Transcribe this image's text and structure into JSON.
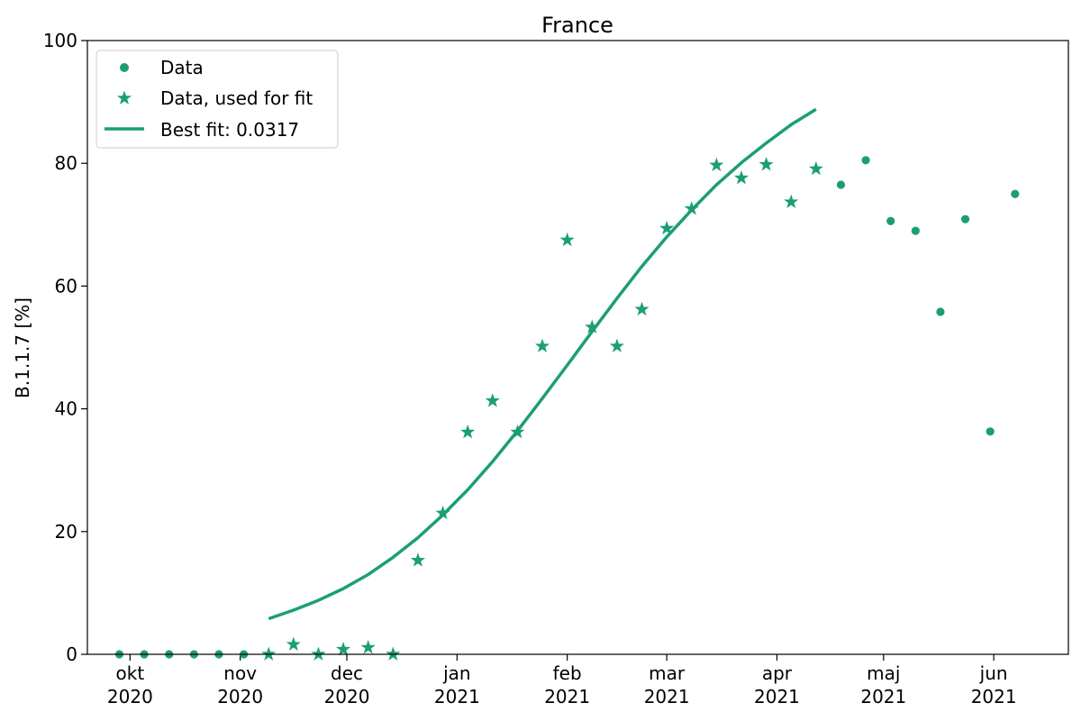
{
  "chart_data": {
    "type": "scatter",
    "title": "France",
    "xlabel": "",
    "ylabel": "B.1.1.7 [%]",
    "ylim": [
      0,
      100
    ],
    "xlim": [
      "2020-09-19",
      "2021-06-22"
    ],
    "yticks": [
      0,
      20,
      40,
      60,
      80,
      100
    ],
    "xticks": [
      {
        "date": "2020-10-01",
        "label1": "okt",
        "label2": "2020"
      },
      {
        "date": "2020-11-01",
        "label1": "nov",
        "label2": "2020"
      },
      {
        "date": "2020-12-01",
        "label1": "dec",
        "label2": "2020"
      },
      {
        "date": "2021-01-01",
        "label1": "jan",
        "label2": "2021"
      },
      {
        "date": "2021-02-01",
        "label1": "feb",
        "label2": "2021"
      },
      {
        "date": "2021-03-01",
        "label1": "mar",
        "label2": "2021"
      },
      {
        "date": "2021-04-01",
        "label1": "apr",
        "label2": "2021"
      },
      {
        "date": "2021-05-01",
        "label1": "maj",
        "label2": "2021"
      },
      {
        "date": "2021-06-01",
        "label1": "jun",
        "label2": "2021"
      }
    ],
    "color": "#1b9e77",
    "grid": false,
    "legend_position": "top-left",
    "legend": [
      {
        "label": "Data",
        "marker": "circle"
      },
      {
        "label": "Data, used for fit",
        "marker": "star"
      },
      {
        "label": "Best fit: 0.0317",
        "marker": "line"
      }
    ],
    "series": [
      {
        "name": "Data",
        "marker": "circle",
        "points": [
          {
            "x": "2020-09-28",
            "y": 0
          },
          {
            "x": "2020-10-05",
            "y": 0
          },
          {
            "x": "2020-10-12",
            "y": 0
          },
          {
            "x": "2020-10-19",
            "y": 0
          },
          {
            "x": "2020-10-26",
            "y": 0
          },
          {
            "x": "2020-11-02",
            "y": 0
          },
          {
            "x": "2021-04-19",
            "y": 76.5
          },
          {
            "x": "2021-04-26",
            "y": 80.5
          },
          {
            "x": "2021-05-03",
            "y": 70.6
          },
          {
            "x": "2021-05-10",
            "y": 69
          },
          {
            "x": "2021-05-17",
            "y": 55.8
          },
          {
            "x": "2021-05-24",
            "y": 70.9
          },
          {
            "x": "2021-05-31",
            "y": 36.3
          },
          {
            "x": "2021-06-07",
            "y": 75
          }
        ]
      },
      {
        "name": "Data, used for fit",
        "marker": "star",
        "points": [
          {
            "x": "2020-11-09",
            "y": 0
          },
          {
            "x": "2020-11-16",
            "y": 1.6
          },
          {
            "x": "2020-11-23",
            "y": 0
          },
          {
            "x": "2020-11-30",
            "y": 0.8
          },
          {
            "x": "2020-12-07",
            "y": 1.1
          },
          {
            "x": "2020-12-14",
            "y": 0
          },
          {
            "x": "2020-12-21",
            "y": 15.3
          },
          {
            "x": "2020-12-28",
            "y": 23
          },
          {
            "x": "2021-01-04",
            "y": 36.2
          },
          {
            "x": "2021-01-11",
            "y": 41.3
          },
          {
            "x": "2021-01-18",
            "y": 36.2
          },
          {
            "x": "2021-01-25",
            "y": 50.2
          },
          {
            "x": "2021-02-01",
            "y": 67.5
          },
          {
            "x": "2021-02-08",
            "y": 53.3
          },
          {
            "x": "2021-02-15",
            "y": 50.2
          },
          {
            "x": "2021-02-22",
            "y": 56.2
          },
          {
            "x": "2021-03-01",
            "y": 69.4
          },
          {
            "x": "2021-03-08",
            "y": 72.6
          },
          {
            "x": "2021-03-15",
            "y": 79.7
          },
          {
            "x": "2021-03-22",
            "y": 77.6
          },
          {
            "x": "2021-03-29",
            "y": 79.8
          },
          {
            "x": "2021-04-05",
            "y": 73.7
          },
          {
            "x": "2021-04-12",
            "y": 79.1
          }
        ]
      },
      {
        "name": "Best fit: 0.0317",
        "marker": "line",
        "points": [
          {
            "x": "2020-11-09",
            "y": 5.8
          },
          {
            "x": "2020-11-16",
            "y": 7.2
          },
          {
            "x": "2020-11-23",
            "y": 8.8
          },
          {
            "x": "2020-11-30",
            "y": 10.7
          },
          {
            "x": "2020-12-07",
            "y": 13
          },
          {
            "x": "2020-12-14",
            "y": 15.8
          },
          {
            "x": "2020-12-21",
            "y": 19
          },
          {
            "x": "2020-12-28",
            "y": 22.7
          },
          {
            "x": "2021-01-04",
            "y": 26.8
          },
          {
            "x": "2021-01-11",
            "y": 31.4
          },
          {
            "x": "2021-01-18",
            "y": 36.4
          },
          {
            "x": "2021-01-25",
            "y": 41.7
          },
          {
            "x": "2021-02-01",
            "y": 47.1
          },
          {
            "x": "2021-02-08",
            "y": 52.6
          },
          {
            "x": "2021-02-15",
            "y": 58
          },
          {
            "x": "2021-02-22",
            "y": 63.2
          },
          {
            "x": "2021-03-01",
            "y": 68
          },
          {
            "x": "2021-03-08",
            "y": 72.4
          },
          {
            "x": "2021-03-15",
            "y": 76.5
          },
          {
            "x": "2021-03-22",
            "y": 80.1
          },
          {
            "x": "2021-03-29",
            "y": 83.3
          },
          {
            "x": "2021-04-05",
            "y": 86.3
          },
          {
            "x": "2021-04-12",
            "y": 88.8
          }
        ]
      }
    ]
  }
}
